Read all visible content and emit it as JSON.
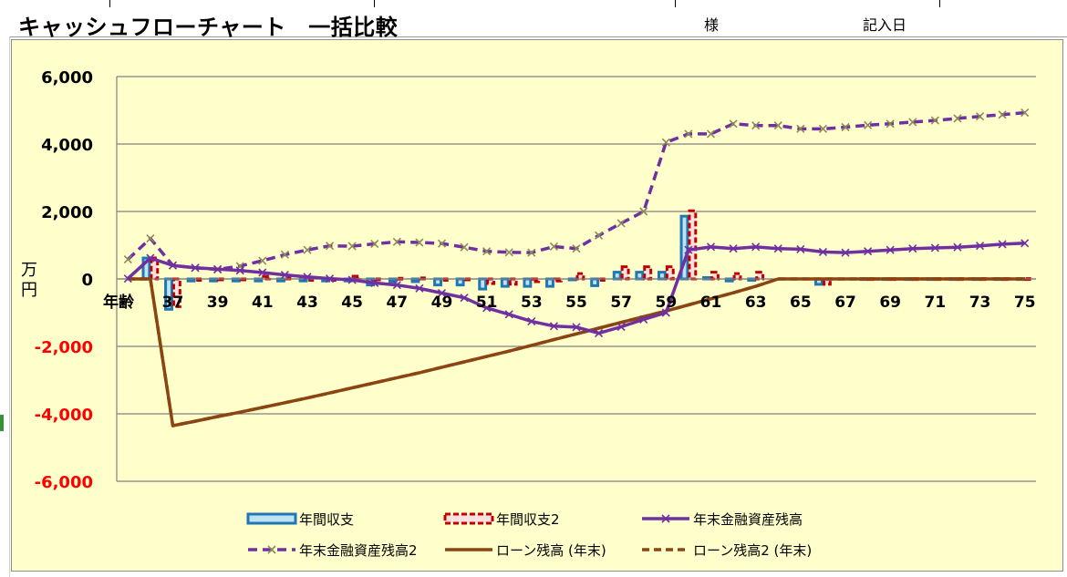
{
  "header": {
    "title": "キャッシュフローチャート　一括比較",
    "sama": "様",
    "kinyu_date": "記入日"
  },
  "colors": {
    "chart_bg": "#ffffcc",
    "bar1_fill": "#bfe3f2",
    "bar1_stroke": "#1f77b4",
    "bar2_fill": "#fbe0e0",
    "bar2_stroke": "#c00000",
    "balance": "#7030a0",
    "balance2": "#7030a0",
    "loan": "#8b4513",
    "negative_label": "#ff0000"
  },
  "chart_data": {
    "type": "line",
    "yunit_label": "万円",
    "xaxis_title": "年齢",
    "ylim": [
      -6000,
      6000
    ],
    "yticks": [
      6000,
      4000,
      2000,
      0,
      -2000,
      -4000,
      -6000
    ],
    "ytick_labels": [
      "6,000",
      "4,000",
      "2,000",
      "0",
      "-2,000",
      "-4,000",
      "-6,000"
    ],
    "x": [
      35,
      36,
      37,
      38,
      39,
      40,
      41,
      42,
      43,
      44,
      45,
      46,
      47,
      48,
      49,
      50,
      51,
      52,
      53,
      54,
      55,
      56,
      57,
      58,
      59,
      60,
      61,
      62,
      63,
      64,
      65,
      66,
      67,
      68,
      69,
      70,
      71,
      72,
      73,
      74,
      75
    ],
    "xtick_labels": [
      "37",
      "39",
      "41",
      "43",
      "45",
      "47",
      "49",
      "51",
      "53",
      "55",
      "57",
      "59",
      "61",
      "63",
      "65",
      "67",
      "69",
      "71",
      "73",
      "75"
    ],
    "xtick_values": [
      37,
      39,
      41,
      43,
      45,
      47,
      49,
      51,
      53,
      55,
      57,
      59,
      61,
      63,
      65,
      67,
      69,
      71,
      73,
      75
    ],
    "grid": true,
    "legend_position": "bottom",
    "series": [
      {
        "name": "年間収支",
        "kind": "bar",
        "values": [
          0,
          620,
          -900,
          -60,
          -60,
          -60,
          -60,
          -60,
          -60,
          -60,
          -60,
          -180,
          -80,
          -80,
          -180,
          -180,
          -300,
          -220,
          -220,
          -220,
          -20,
          -200,
          200,
          200,
          200,
          1860,
          40,
          -60,
          -40,
          0,
          0,
          -160,
          0,
          10,
          10,
          10,
          10,
          10,
          10,
          10,
          10
        ]
      },
      {
        "name": "年間収支2",
        "kind": "bar",
        "values": [
          0,
          620,
          -820,
          -40,
          -20,
          -20,
          80,
          30,
          -40,
          -40,
          80,
          -20,
          20,
          30,
          -40,
          -20,
          -140,
          -160,
          -80,
          -60,
          160,
          -40,
          360,
          360,
          360,
          2020,
          200,
          160,
          200,
          0,
          0,
          -160,
          0,
          10,
          10,
          10,
          10,
          10,
          10,
          10,
          10
        ]
      },
      {
        "name": "年末金融資産残高",
        "kind": "line",
        "values": [
          10,
          620,
          400,
          330,
          290,
          250,
          190,
          120,
          60,
          10,
          -30,
          -120,
          -180,
          -280,
          -420,
          -560,
          -860,
          -1050,
          -1260,
          -1400,
          -1430,
          -1610,
          -1420,
          -1200,
          -1000,
          860,
          950,
          900,
          950,
          900,
          880,
          800,
          780,
          820,
          860,
          900,
          920,
          940,
          980,
          1030,
          1060
        ]
      },
      {
        "name": "年末金融資産残高2",
        "kind": "line",
        "values": [
          580,
          1200,
          400,
          330,
          280,
          380,
          540,
          720,
          860,
          980,
          970,
          1040,
          1100,
          1080,
          1050,
          940,
          820,
          790,
          780,
          960,
          900,
          1290,
          1650,
          2000,
          4050,
          4300,
          4300,
          4600,
          4550,
          4550,
          4450,
          4450,
          4500,
          4560,
          4600,
          4650,
          4700,
          4760,
          4820,
          4870,
          4930
        ]
      },
      {
        "name": "ローン残高 (年末)",
        "kind": "line",
        "values": [
          0,
          0,
          -4350,
          -4220,
          -4080,
          -3950,
          -3810,
          -3670,
          -3530,
          -3380,
          -3230,
          -3080,
          -2930,
          -2780,
          -2620,
          -2460,
          -2300,
          -2140,
          -1970,
          -1800,
          -1630,
          -1460,
          -1290,
          -1120,
          -950,
          -770,
          -590,
          -410,
          -220,
          0,
          0,
          0,
          0,
          0,
          0,
          0,
          0,
          0,
          0,
          0,
          0
        ]
      },
      {
        "name": "ローン残高2 (年末)",
        "kind": "line",
        "values": [
          0,
          0,
          -4350,
          -4220,
          -4080,
          -3950,
          -3810,
          -3670,
          -3530,
          -3380,
          -3230,
          -3080,
          -2930,
          -2780,
          -2620,
          -2460,
          -2300,
          -2140,
          -1970,
          -1800,
          -1630,
          -1460,
          -1290,
          -1120,
          -950,
          -770,
          -590,
          -410,
          -220,
          0,
          0,
          0,
          0,
          0,
          0,
          0,
          0,
          0,
          0,
          0,
          0
        ]
      }
    ]
  }
}
